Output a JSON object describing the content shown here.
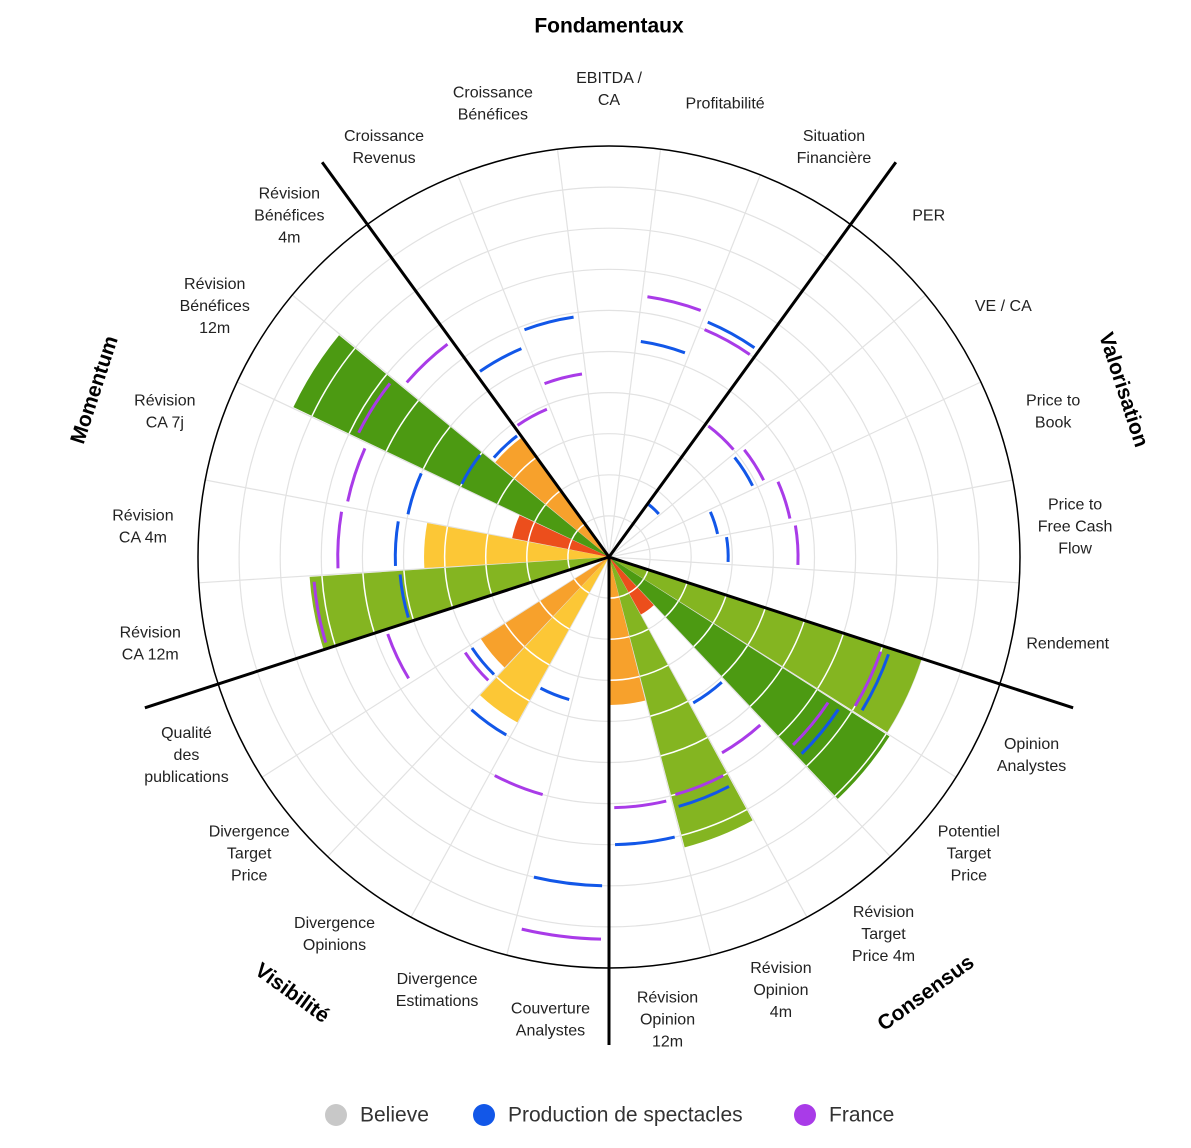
{
  "chart_data": {
    "type": "polar-bar",
    "title": "Fondamentaux",
    "groups": [
      "Fondamentaux",
      "Valorisation",
      "Consensus",
      "Visibilité",
      "Momentum"
    ],
    "categories": [
      [
        "Croissance",
        "Revenus"
      ],
      [
        "Croissance",
        "Bénéfices"
      ],
      [
        "EBITDA /",
        "CA"
      ],
      [
        "Profitabilité"
      ],
      [
        "Situation",
        "Financière"
      ],
      [
        "PER"
      ],
      [
        "VE / CA"
      ],
      [
        "Price to",
        "Book"
      ],
      [
        "Price to",
        "Free Cash",
        "Flow"
      ],
      [
        "Rendement"
      ],
      [
        "Opinion",
        "Analystes"
      ],
      [
        "Potentiel",
        "Target",
        "Price"
      ],
      [
        "Révision",
        "Target",
        "Price 4m"
      ],
      [
        "Révision",
        "Opinion",
        "4m"
      ],
      [
        "Révision",
        "Opinion",
        "12m"
      ],
      [
        "Couverture",
        "Analystes"
      ],
      [
        "Divergence",
        "Estimations"
      ],
      [
        "Divergence",
        "Opinions"
      ],
      [
        "Divergence",
        "Target",
        "Price"
      ],
      [
        "Qualité",
        "des",
        "publications"
      ],
      [
        "Révision",
        "CA 12m"
      ],
      [
        "Révision",
        "CA 4m"
      ],
      [
        "Révision",
        "CA 7j"
      ],
      [
        "Révision",
        "Bénéfices",
        "12m"
      ],
      [
        "Révision",
        "Bénéfices",
        "4m"
      ]
    ],
    "rlim": [
      0,
      10
    ],
    "rticks": [
      1,
      2,
      3,
      4,
      5,
      6,
      7,
      8,
      9,
      10
    ],
    "grid": true,
    "series": [
      {
        "name": "Believe",
        "color": "#c8c8c8",
        "mark": "bar",
        "values": [
          null,
          null,
          null,
          null,
          null,
          null,
          null,
          null,
          null,
          null,
          8.0,
          8.1,
          1.6,
          7.3,
          3.6,
          null,
          null,
          4.6,
          3.7,
          null,
          7.3,
          4.5,
          2.4,
          8.5,
          3.6
        ],
        "colors": [
          null,
          null,
          null,
          null,
          null,
          null,
          null,
          null,
          null,
          null,
          "#84b521",
          "#4c9a12",
          "#ec4e1c",
          "#84b521",
          "#f7a12c",
          null,
          null,
          "#fcc736",
          "#f7a12c",
          null,
          "#84b521",
          "#fcc736",
          "#ec4e1c",
          "#4c9a12",
          "#f7a12c"
        ]
      },
      {
        "name": "Production de spectacles",
        "color": "#1257e8",
        "mark": "arc",
        "values": [
          5.5,
          5.9,
          null,
          5.3,
          6.2,
          1.6,
          3.9,
          2.7,
          2.9,
          null,
          7.2,
          6.7,
          4.1,
          6.3,
          7.0,
          8.0,
          3.6,
          5.0,
          4.0,
          null,
          5.1,
          5.2,
          5.0,
          4.0,
          3.7
        ]
      },
      {
        "name": "France",
        "color": "#a93be8",
        "mark": "arc",
        "values": [
          3.9,
          4.5,
          null,
          6.4,
          6.0,
          4.0,
          4.2,
          4.5,
          4.6,
          null,
          7.0,
          6.4,
          5.5,
          6.0,
          6.1,
          9.3,
          6.0,
          null,
          4.2,
          5.7,
          7.2,
          6.6,
          6.5,
          6.8,
          6.5
        ]
      }
    ]
  }
}
